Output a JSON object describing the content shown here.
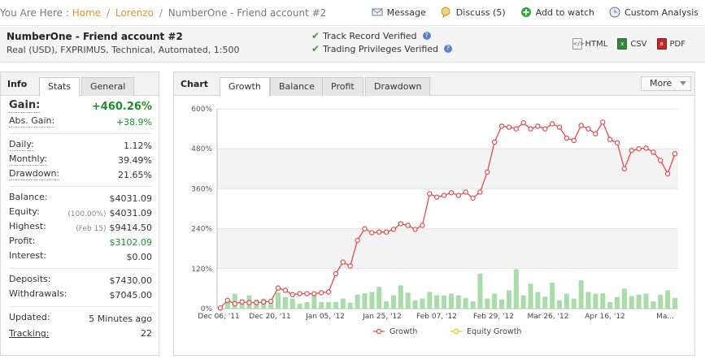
{
  "breadcrumb": {
    "prefix": "You Are Here :",
    "home": "Home",
    "user": "Lorenzo",
    "current": "NumberOne - Friend account #2",
    "sep": "/"
  },
  "actions": {
    "message": "Message",
    "discuss": "Discuss (5)",
    "watch": "Add to watch",
    "custom": "Custom Analysis"
  },
  "account": {
    "name": "NumberOne - Friend account #2",
    "details": "Real (USD), FXPRIMUS, Technical, Automated, 1:500",
    "verified_track": "Track Record Verified",
    "verified_priv": "Trading Privileges Verified",
    "exports": {
      "html": "HTML",
      "csv": "CSV",
      "pdf": "PDF"
    }
  },
  "info": {
    "title": "Info",
    "tabs": [
      "Stats",
      "General"
    ],
    "gain_label": "Gain:",
    "gain": "+460.26%",
    "abs_gain_label": "Abs. Gain:",
    "abs_gain": "+38.9%",
    "daily_label": "Daily:",
    "daily": "1.12%",
    "monthly_label": "Monthly:",
    "monthly": "39.49%",
    "drawdown_label": "Drawdown:",
    "drawdown": "21.65%",
    "balance_label": "Balance:",
    "balance": "$4031.09",
    "equity_label": "Equity:",
    "equity_pct": "(100.00%)",
    "equity": "$4031.09",
    "highest_label": "Highest:",
    "highest_date": "(Feb 15)",
    "highest": "$9414.50",
    "profit_label": "Profit:",
    "profit": "$3102.09",
    "interest_label": "Interest:",
    "interest": "$0.00",
    "deposits_label": "Deposits:",
    "deposits": "$7430.00",
    "withdrawals_label": "Withdrawals:",
    "withdrawals": "$7045.00",
    "updated_label": "Updated:",
    "updated": "5 Minutes ago",
    "tracking_label": "Tracking:",
    "tracking": "22"
  },
  "chart_panel": {
    "title": "Chart",
    "tabs": [
      "Growth",
      "Balance",
      "Profit",
      "Drawdown"
    ],
    "more": "More"
  },
  "colors": {
    "growth_line": "#e24b4b",
    "bars": "#a8dca8",
    "equity_marker": "#e6c619",
    "accent": "#e7912c"
  },
  "chart_data": {
    "type": "line",
    "y_ticks": [
      "0%",
      "120%",
      "240%",
      "360%",
      "480%",
      "600%"
    ],
    "ylim": [
      0,
      600
    ],
    "x_ticks": [
      "Dec 06, '11",
      "Dec 20, '11",
      "Jan 05, '12",
      "Jan 25, '12",
      "Feb 07, '12",
      "Feb 29, '12",
      "Mar 26, '12",
      "Apr 16, '12",
      "Ma..."
    ],
    "legend": [
      "Growth",
      "Equity Growth"
    ],
    "series": [
      {
        "name": "Growth",
        "values": [
          2,
          25,
          15,
          20,
          18,
          18,
          20,
          22,
          62,
          55,
          42,
          45,
          45,
          45,
          48,
          50,
          105,
          140,
          128,
          205,
          240,
          228,
          230,
          230,
          238,
          255,
          250,
          238,
          250,
          345,
          335,
          340,
          348,
          340,
          350,
          332,
          350,
          410,
          500,
          548,
          545,
          540,
          558,
          540,
          548,
          540,
          555,
          545,
          512,
          505,
          550,
          540,
          525,
          560,
          508,
          498,
          420,
          475,
          480,
          482,
          470,
          445,
          405,
          465
        ]
      },
      {
        "name": "Daily bars",
        "values": [
          3,
          20,
          45,
          28,
          40,
          28,
          30,
          25,
          48,
          35,
          30,
          15,
          20,
          40,
          20,
          20,
          20,
          30,
          18,
          42,
          46,
          50,
          66,
          22,
          40,
          70,
          48,
          25,
          30,
          50,
          40,
          40,
          45,
          40,
          32,
          22,
          105,
          30,
          45,
          28,
          55,
          118,
          40,
          75,
          50,
          36,
          78,
          25,
          45,
          30,
          85,
          50,
          45,
          46,
          20,
          35,
          60,
          38,
          42,
          45,
          22,
          42,
          55,
          32
        ]
      }
    ]
  }
}
